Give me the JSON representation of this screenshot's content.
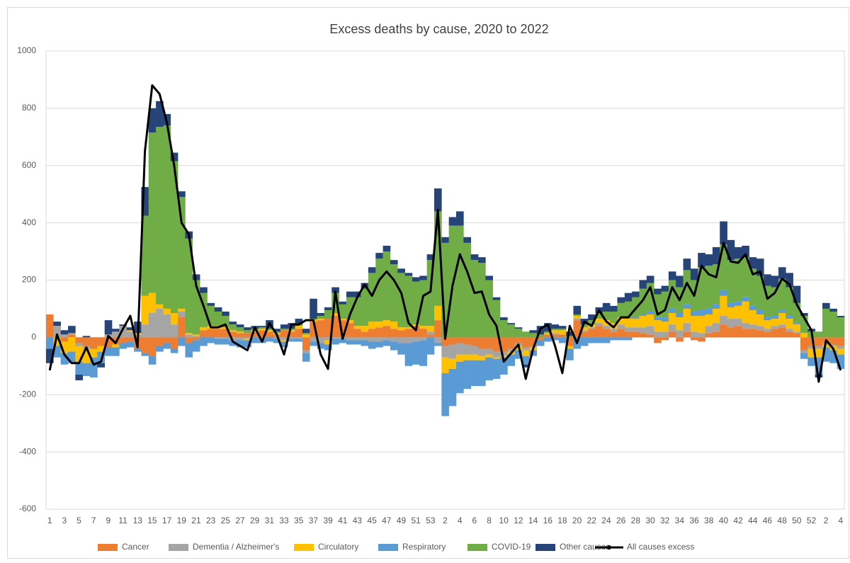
{
  "chart_data": {
    "type": "bar",
    "title": "Excess deaths by cause, 2020 to 2022",
    "categories": [
      "1",
      null,
      "3",
      null,
      "5",
      null,
      "7",
      null,
      "9",
      null,
      "11",
      null,
      "13",
      null,
      "15",
      null,
      "17",
      null,
      "19",
      null,
      "21",
      null,
      "23",
      null,
      "25",
      null,
      "27",
      null,
      "29",
      null,
      "31",
      null,
      "33",
      null,
      "35",
      null,
      "37",
      null,
      "39",
      null,
      "41",
      null,
      "43",
      null,
      "45",
      null,
      "47",
      null,
      "49",
      null,
      "51",
      null,
      "53",
      null,
      "2",
      null,
      "4",
      null,
      "6",
      null,
      "8",
      null,
      "10",
      null,
      "12",
      null,
      "14",
      null,
      "16",
      null,
      "18",
      null,
      "20",
      null,
      "22",
      null,
      "24",
      null,
      "26",
      null,
      "28",
      null,
      "30",
      null,
      "32",
      null,
      "34",
      null,
      "36",
      null,
      "38",
      null,
      "40",
      null,
      "42",
      null,
      "44",
      null,
      "46",
      null,
      "48",
      null,
      "50",
      null,
      "52",
      null,
      "2",
      null,
      "4"
    ],
    "ylim": [
      -600,
      1000
    ],
    "yticks": [
      -600,
      -400,
      -200,
      0,
      200,
      400,
      600,
      800,
      1000
    ],
    "grid": true,
    "series": [
      {
        "name": "Cancer",
        "type": "bar",
        "color": "#ed7d31",
        "values": [
          80,
          0,
          -15,
          10,
          -20,
          -30,
          -40,
          -30,
          -35,
          -25,
          -20,
          -15,
          -40,
          -55,
          -65,
          -30,
          -20,
          -40,
          70,
          -20,
          -10,
          25,
          30,
          30,
          30,
          20,
          15,
          15,
          20,
          25,
          20,
          10,
          25,
          20,
          30,
          -45,
          55,
          60,
          65,
          75,
          60,
          50,
          30,
          20,
          30,
          35,
          40,
          30,
          25,
          30,
          40,
          30,
          10,
          60,
          -30,
          -25,
          -20,
          -25,
          -30,
          -40,
          -40,
          -50,
          -50,
          -40,
          -20,
          -35,
          -30,
          -10,
          10,
          10,
          10,
          -30,
          60,
          20,
          30,
          40,
          30,
          20,
          30,
          20,
          20,
          15,
          10,
          -20,
          -10,
          20,
          -15,
          20,
          -10,
          -15,
          15,
          20,
          45,
          35,
          40,
          30,
          30,
          25,
          20,
          30,
          35,
          20,
          15,
          -45,
          -30,
          -30,
          -20,
          -25,
          -30
        ]
      },
      {
        "name": "Dementia / Alzheimer's",
        "type": "bar",
        "color": "#a5a5a5",
        "values": [
          0,
          40,
          10,
          5,
          -10,
          -10,
          0,
          0,
          10,
          20,
          40,
          20,
          10,
          45,
          85,
          100,
          80,
          45,
          20,
          10,
          5,
          0,
          0,
          -5,
          -5,
          -10,
          -10,
          -5,
          0,
          -5,
          0,
          -5,
          -10,
          -5,
          -5,
          -10,
          -15,
          -20,
          -10,
          -5,
          -5,
          -10,
          -10,
          -10,
          -15,
          -15,
          -10,
          -15,
          -20,
          -20,
          -15,
          -10,
          10,
          -20,
          -40,
          -50,
          -40,
          -35,
          -30,
          -25,
          -20,
          -20,
          -15,
          -10,
          -10,
          -10,
          -5,
          0,
          0,
          5,
          0,
          0,
          5,
          5,
          5,
          10,
          10,
          10,
          15,
          15,
          15,
          20,
          30,
          20,
          20,
          25,
          25,
          30,
          20,
          15,
          25,
          30,
          30,
          30,
          25,
          20,
          15,
          15,
          10,
          10,
          10,
          10,
          5,
          -10,
          -10,
          -10,
          -5,
          -5,
          -10
        ]
      },
      {
        "name": "Circulatory",
        "type": "bar",
        "color": "#ffc000",
        "values": [
          0,
          -30,
          -40,
          -50,
          -55,
          -50,
          -30,
          -20,
          0,
          -10,
          0,
          5,
          5,
          100,
          70,
          15,
          20,
          40,
          10,
          5,
          5,
          10,
          10,
          10,
          5,
          5,
          5,
          -5,
          5,
          5,
          5,
          5,
          -5,
          5,
          10,
          10,
          5,
          5,
          -15,
          10,
          5,
          10,
          10,
          20,
          25,
          20,
          20,
          25,
          10,
          5,
          5,
          10,
          20,
          50,
          -55,
          -35,
          -25,
          -20,
          -20,
          -15,
          -10,
          -5,
          -5,
          -10,
          -15,
          -20,
          -10,
          0,
          5,
          10,
          15,
          -10,
          10,
          10,
          10,
          15,
          20,
          20,
          25,
          30,
          30,
          40,
          40,
          40,
          35,
          40,
          45,
          50,
          55,
          60,
          40,
          50,
          70,
          40,
          45,
          75,
          50,
          40,
          30,
          25,
          40,
          35,
          25,
          15,
          -30,
          -30,
          -10,
          -15,
          -20
        ]
      },
      {
        "name": "Respiratory",
        "type": "bar",
        "color": "#5b9bd5",
        "values": [
          -40,
          -40,
          -40,
          -40,
          -45,
          -45,
          -70,
          -40,
          -30,
          -30,
          -20,
          -20,
          -10,
          -10,
          -30,
          -20,
          -20,
          -15,
          -30,
          -50,
          -40,
          -30,
          -20,
          -20,
          -20,
          -20,
          -25,
          -25,
          -20,
          -15,
          -15,
          -15,
          -20,
          -10,
          -10,
          -30,
          -15,
          -20,
          -20,
          -20,
          -15,
          -15,
          -15,
          -20,
          -25,
          -20,
          -20,
          -30,
          -40,
          -80,
          -80,
          -90,
          -60,
          -10,
          -150,
          -130,
          -110,
          -100,
          -90,
          -90,
          -80,
          -70,
          -60,
          -40,
          -30,
          -30,
          -20,
          -20,
          -15,
          -10,
          -20,
          -40,
          -40,
          -30,
          -20,
          -20,
          -20,
          -10,
          -10,
          -10,
          5,
          5,
          10,
          10,
          15,
          15,
          15,
          15,
          15,
          20,
          20,
          15,
          20,
          15,
          15,
          15,
          15,
          15,
          10,
          10,
          10,
          10,
          5,
          -20,
          -30,
          -60,
          -50,
          -45,
          -50
        ]
      },
      {
        "name": "COVID-19",
        "type": "bar",
        "color": "#70ad47",
        "values": [
          0,
          0,
          0,
          0,
          0,
          0,
          0,
          0,
          0,
          0,
          0,
          0,
          0,
          280,
          560,
          620,
          640,
          530,
          390,
          330,
          190,
          120,
          70,
          50,
          40,
          20,
          15,
          10,
          5,
          5,
          5,
          5,
          5,
          5,
          5,
          5,
          5,
          10,
          30,
          70,
          50,
          80,
          100,
          130,
          170,
          220,
          240,
          200,
          190,
          180,
          150,
          160,
          230,
          330,
          330,
          390,
          390,
          330,
          270,
          260,
          200,
          130,
          60,
          45,
          30,
          20,
          15,
          10,
          5,
          5,
          5,
          5,
          5,
          10,
          15,
          20,
          30,
          40,
          50,
          60,
          70,
          90,
          100,
          80,
          90,
          100,
          90,
          120,
          110,
          150,
          150,
          140,
          160,
          150,
          150,
          140,
          130,
          120,
          110,
          100,
          110,
          100,
          70,
          60,
          20,
          20,
          100,
          90,
          70
        ]
      },
      {
        "name": "Other causes",
        "type": "bar",
        "color": "#264478",
        "values": [
          -50,
          15,
          15,
          25,
          -20,
          5,
          0,
          -15,
          50,
          10,
          5,
          10,
          40,
          100,
          85,
          90,
          40,
          30,
          20,
          25,
          20,
          20,
          10,
          15,
          15,
          10,
          10,
          10,
          10,
          5,
          30,
          10,
          15,
          20,
          20,
          15,
          70,
          10,
          10,
          20,
          10,
          20,
          20,
          20,
          20,
          20,
          20,
          15,
          15,
          10,
          15,
          15,
          20,
          80,
          20,
          30,
          50,
          20,
          20,
          20,
          15,
          10,
          10,
          5,
          5,
          -10,
          10,
          30,
          30,
          15,
          10,
          15,
          30,
          20,
          20,
          20,
          30,
          20,
          20,
          30,
          20,
          30,
          25,
          20,
          20,
          30,
          40,
          40,
          40,
          50,
          40,
          60,
          80,
          70,
          40,
          40,
          40,
          60,
          40,
          40,
          40,
          50,
          60,
          10,
          10,
          -10,
          20,
          10,
          5
        ]
      },
      {
        "name": "All causes excess",
        "type": "line",
        "color": "#000000",
        "values": [
          -115,
          10,
          -60,
          -90,
          -90,
          -35,
          -95,
          -85,
          5,
          -20,
          30,
          75,
          -35,
          650,
          880,
          850,
          750,
          600,
          400,
          360,
          180,
          110,
          35,
          35,
          45,
          -15,
          -30,
          -45,
          35,
          -15,
          50,
          10,
          -60,
          45,
          45,
          60,
          60,
          -60,
          -110,
          160,
          -5,
          80,
          140,
          185,
          145,
          200,
          230,
          200,
          155,
          50,
          25,
          145,
          160,
          445,
          -5,
          180,
          290,
          230,
          155,
          160,
          80,
          40,
          -85,
          -55,
          -25,
          -145,
          -40,
          30,
          45,
          -30,
          -125,
          40,
          -20,
          55,
          40,
          95,
          55,
          35,
          70,
          70,
          100,
          130,
          175,
          80,
          95,
          175,
          130,
          190,
          145,
          250,
          220,
          210,
          330,
          265,
          260,
          290,
          220,
          230,
          135,
          155,
          205,
          185,
          115,
          70,
          25,
          -155,
          -10,
          -40,
          -115
        ]
      }
    ]
  }
}
